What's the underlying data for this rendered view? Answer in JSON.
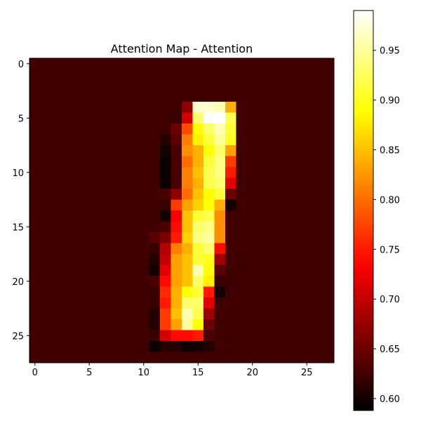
{
  "chart_data": [
    {
      "type": "heatmap",
      "title": "Attention Map - Attention",
      "colormap": "hot",
      "rows": 28,
      "cols": 28,
      "x_ticks": [
        0,
        5,
        10,
        15,
        20,
        25
      ],
      "y_ticks": [
        0,
        5,
        10,
        15,
        20,
        25
      ],
      "x_tick_labels": [
        "0",
        "5",
        "10",
        "15",
        "20",
        "25"
      ],
      "y_tick_labels": [
        "0",
        "5",
        "10",
        "15",
        "20",
        "25"
      ],
      "vmin": 0.588,
      "vmax": 0.99,
      "background_value": 0.625,
      "cells": [
        [
          4,
          14,
          0.67
        ],
        [
          4,
          15,
          0.97
        ],
        [
          4,
          16,
          0.97
        ],
        [
          4,
          17,
          0.96
        ],
        [
          4,
          18,
          0.84
        ],
        [
          5,
          13,
          0.62
        ],
        [
          5,
          14,
          0.71
        ],
        [
          5,
          15,
          0.93
        ],
        [
          5,
          16,
          0.99
        ],
        [
          5,
          17,
          0.99
        ],
        [
          5,
          18,
          0.92
        ],
        [
          6,
          13,
          0.65
        ],
        [
          6,
          14,
          0.78
        ],
        [
          6,
          15,
          0.89
        ],
        [
          6,
          16,
          0.93
        ],
        [
          6,
          17,
          0.96
        ],
        [
          6,
          18,
          0.91
        ],
        [
          7,
          12,
          0.61
        ],
        [
          7,
          13,
          0.64
        ],
        [
          7,
          14,
          0.81
        ],
        [
          7,
          15,
          0.88
        ],
        [
          7,
          16,
          0.91
        ],
        [
          7,
          17,
          0.95
        ],
        [
          7,
          18,
          0.9
        ],
        [
          8,
          12,
          0.6
        ],
        [
          8,
          13,
          0.63
        ],
        [
          8,
          14,
          0.82
        ],
        [
          8,
          15,
          0.84
        ],
        [
          8,
          16,
          0.89
        ],
        [
          8,
          17,
          0.93
        ],
        [
          8,
          18,
          0.83
        ],
        [
          9,
          12,
          0.595
        ],
        [
          9,
          13,
          0.63
        ],
        [
          9,
          14,
          0.8
        ],
        [
          9,
          15,
          0.84
        ],
        [
          9,
          16,
          0.91
        ],
        [
          9,
          17,
          0.94
        ],
        [
          9,
          18,
          0.77
        ],
        [
          10,
          12,
          0.595
        ],
        [
          10,
          13,
          0.63
        ],
        [
          10,
          14,
          0.81
        ],
        [
          10,
          15,
          0.85
        ],
        [
          10,
          16,
          0.92
        ],
        [
          10,
          17,
          0.94
        ],
        [
          10,
          18,
          0.75
        ],
        [
          11,
          12,
          0.595
        ],
        [
          11,
          13,
          0.63
        ],
        [
          11,
          14,
          0.81
        ],
        [
          11,
          15,
          0.84
        ],
        [
          11,
          16,
          0.92
        ],
        [
          11,
          17,
          0.93
        ],
        [
          11,
          18,
          0.72
        ],
        [
          12,
          12,
          0.63
        ],
        [
          12,
          13,
          0.67
        ],
        [
          12,
          14,
          0.8
        ],
        [
          12,
          15,
          0.85
        ],
        [
          12,
          16,
          0.89
        ],
        [
          12,
          17,
          0.91
        ],
        [
          12,
          18,
          0.65
        ],
        [
          13,
          12,
          0.62
        ],
        [
          13,
          13,
          0.77
        ],
        [
          13,
          14,
          0.83
        ],
        [
          13,
          15,
          0.86
        ],
        [
          13,
          16,
          0.89
        ],
        [
          13,
          17,
          0.84
        ],
        [
          13,
          18,
          0.6
        ],
        [
          14,
          12,
          0.6
        ],
        [
          14,
          13,
          0.73
        ],
        [
          14,
          14,
          0.85
        ],
        [
          14,
          15,
          0.91
        ],
        [
          14,
          16,
          0.92
        ],
        [
          14,
          17,
          0.82
        ],
        [
          15,
          12,
          0.63
        ],
        [
          15,
          13,
          0.74
        ],
        [
          15,
          14,
          0.85
        ],
        [
          15,
          15,
          0.93
        ],
        [
          15,
          16,
          0.94
        ],
        [
          15,
          17,
          0.82
        ],
        [
          16,
          11,
          0.64
        ],
        [
          16,
          12,
          0.66
        ],
        [
          16,
          13,
          0.75
        ],
        [
          16,
          14,
          0.86
        ],
        [
          16,
          15,
          0.94
        ],
        [
          16,
          16,
          0.95
        ],
        [
          16,
          17,
          0.82
        ],
        [
          17,
          11,
          0.62
        ],
        [
          17,
          12,
          0.69
        ],
        [
          17,
          13,
          0.81
        ],
        [
          17,
          14,
          0.84
        ],
        [
          17,
          15,
          0.91
        ],
        [
          17,
          16,
          0.93
        ],
        [
          17,
          17,
          0.74
        ],
        [
          18,
          11,
          0.61
        ],
        [
          18,
          12,
          0.7
        ],
        [
          18,
          13,
          0.83
        ],
        [
          18,
          14,
          0.85
        ],
        [
          18,
          15,
          0.91
        ],
        [
          18,
          16,
          0.9
        ],
        [
          18,
          17,
          0.68
        ],
        [
          19,
          11,
          0.6
        ],
        [
          19,
          12,
          0.72
        ],
        [
          19,
          13,
          0.83
        ],
        [
          19,
          14,
          0.85
        ],
        [
          19,
          15,
          0.96
        ],
        [
          19,
          16,
          0.89
        ],
        [
          19,
          17,
          0.64
        ],
        [
          20,
          11,
          0.63
        ],
        [
          20,
          12,
          0.74
        ],
        [
          20,
          13,
          0.83
        ],
        [
          20,
          14,
          0.85
        ],
        [
          20,
          15,
          0.93
        ],
        [
          20,
          16,
          0.88
        ],
        [
          20,
          17,
          0.62
        ],
        [
          21,
          11,
          0.62
        ],
        [
          21,
          12,
          0.76
        ],
        [
          21,
          13,
          0.84
        ],
        [
          21,
          14,
          0.89
        ],
        [
          21,
          15,
          0.91
        ],
        [
          21,
          16,
          0.75
        ],
        [
          21,
          17,
          0.6
        ],
        [
          22,
          11,
          0.62
        ],
        [
          22,
          12,
          0.75
        ],
        [
          22,
          13,
          0.84
        ],
        [
          22,
          14,
          0.93
        ],
        [
          22,
          15,
          0.93
        ],
        [
          22,
          16,
          0.72
        ],
        [
          23,
          11,
          0.61
        ],
        [
          23,
          12,
          0.77
        ],
        [
          23,
          13,
          0.85
        ],
        [
          23,
          14,
          0.96
        ],
        [
          23,
          15,
          0.92
        ],
        [
          23,
          16,
          0.68
        ],
        [
          24,
          11,
          0.61
        ],
        [
          24,
          12,
          0.77
        ],
        [
          24,
          13,
          0.83
        ],
        [
          24,
          14,
          0.95
        ],
        [
          24,
          15,
          0.89
        ],
        [
          24,
          16,
          0.65
        ],
        [
          25,
          11,
          0.62
        ],
        [
          25,
          12,
          0.71
        ],
        [
          25,
          13,
          0.74
        ],
        [
          25,
          14,
          0.74
        ],
        [
          25,
          15,
          0.75
        ],
        [
          25,
          16,
          0.63
        ],
        [
          26,
          11,
          0.595
        ],
        [
          26,
          12,
          0.61
        ],
        [
          26,
          13,
          0.61
        ],
        [
          26,
          14,
          0.595
        ],
        [
          26,
          15,
          0.6
        ],
        [
          26,
          16,
          0.61
        ]
      ],
      "colorbar": {
        "ticks": [
          0.6,
          0.65,
          0.7,
          0.75,
          0.8,
          0.85,
          0.9,
          0.95
        ],
        "tick_labels": [
          "0.60",
          "0.65",
          "0.70",
          "0.75",
          "0.80",
          "0.85",
          "0.90",
          "0.95"
        ]
      }
    }
  ]
}
